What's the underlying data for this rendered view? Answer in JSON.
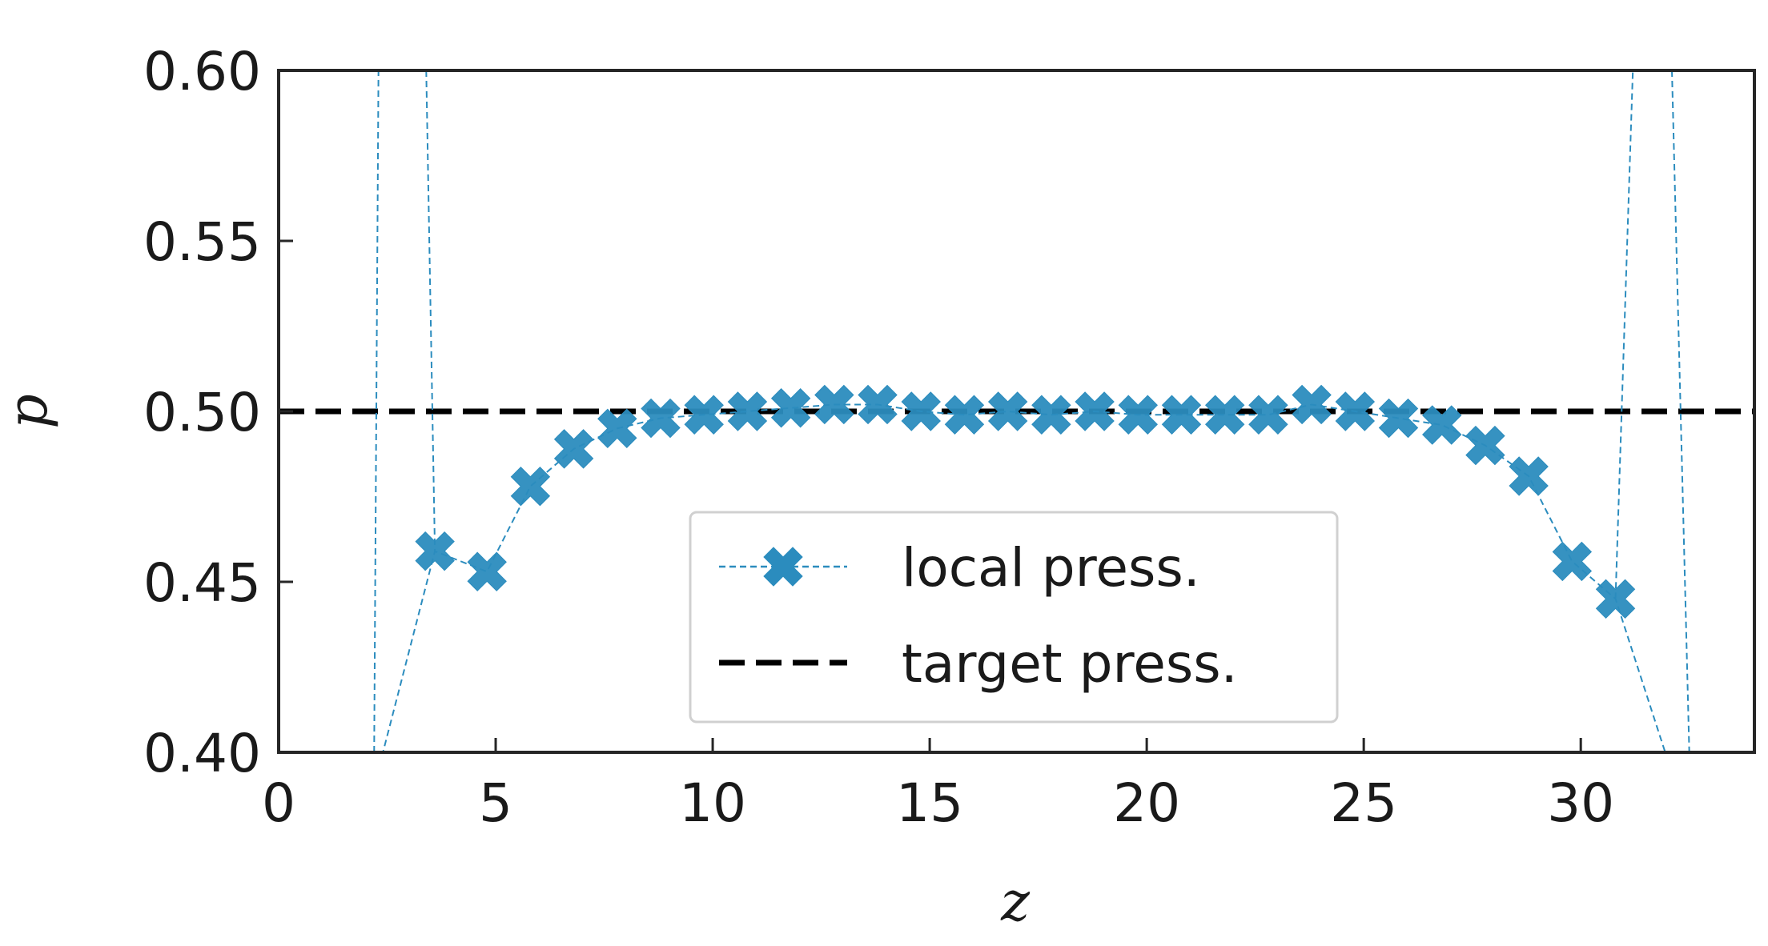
{
  "chart_data": {
    "type": "line",
    "xlabel": "z",
    "ylabel": "p",
    "xlim": [
      0,
      34
    ],
    "ylim": [
      0.4,
      0.6
    ],
    "xticks": [
      "0",
      "5",
      "10",
      "15",
      "20",
      "25",
      "30"
    ],
    "yticks": [
      "0.40",
      "0.45",
      "0.50",
      "0.55",
      "0.60"
    ],
    "grid": false,
    "legend_position": "lower-center",
    "series": [
      {
        "name": "local press.",
        "style": "dashed-line-with-x-markers",
        "color": "#2b8cbe",
        "x": [
          2.2,
          3.6,
          4.8,
          5.8,
          6.8,
          7.8,
          8.8,
          9.8,
          10.8,
          11.8,
          12.8,
          13.8,
          14.8,
          15.8,
          16.8,
          17.8,
          18.8,
          19.8,
          20.8,
          21.8,
          22.8,
          23.8,
          24.8,
          25.8,
          26.8,
          27.8,
          28.8,
          29.8,
          30.8,
          32.2
        ],
        "y": [
          0.39,
          0.459,
          0.453,
          0.478,
          0.489,
          0.495,
          0.498,
          0.499,
          0.5,
          0.501,
          0.502,
          0.502,
          0.5,
          0.499,
          0.5,
          0.499,
          0.5,
          0.499,
          0.499,
          0.499,
          0.499,
          0.502,
          0.5,
          0.498,
          0.496,
          0.49,
          0.481,
          0.456,
          0.445,
          0.39
        ],
        "markers_shown": [
          false,
          true,
          true,
          true,
          true,
          true,
          true,
          true,
          true,
          true,
          true,
          true,
          true,
          true,
          true,
          true,
          true,
          true,
          true,
          true,
          true,
          true,
          true,
          true,
          true,
          true,
          true,
          true,
          true,
          false
        ]
      },
      {
        "name": "target press.",
        "style": "dashed-line",
        "color": "#000000",
        "y_constant": 0.5
      }
    ],
    "extra_segments": [
      {
        "x": [
          2.2,
          2.3
        ],
        "y": [
          0.4,
          0.6
        ]
      },
      {
        "x": [
          3.4,
          3.6
        ],
        "y": [
          0.6,
          0.459
        ]
      },
      {
        "x": [
          30.8,
          31.2
        ],
        "y": [
          0.445,
          0.6
        ]
      },
      {
        "x": [
          32.1,
          32.5
        ],
        "y": [
          0.6,
          0.4
        ]
      }
    ]
  }
}
